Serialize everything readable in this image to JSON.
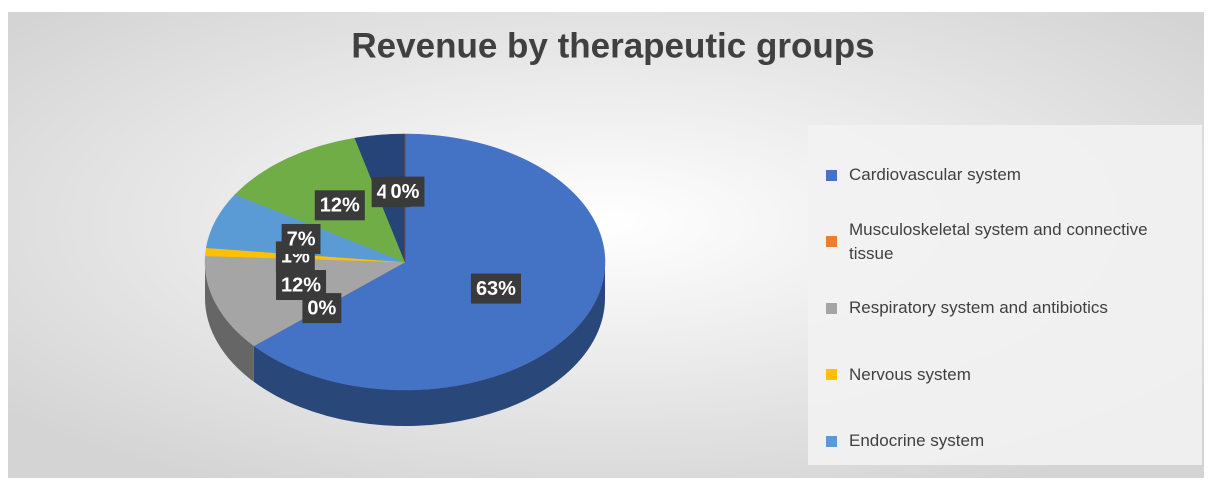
{
  "chart_data": {
    "type": "pie",
    "title": "Revenue by therapeutic groups",
    "categories": [
      "Cardiovascular system",
      "Musculoskeletal system and connective tissue",
      "Respiratory system and antibiotics",
      "Nervous system",
      "Endocrine system",
      null,
      null,
      null
    ],
    "values": [
      63,
      0,
      12,
      1,
      7,
      12,
      4,
      0
    ],
    "value_labels": [
      "63%",
      "0%",
      "12%",
      "1%",
      "7%",
      "12%",
      "4%",
      "0%"
    ],
    "colors": [
      "#4472c4",
      "#ed7d31",
      "#a5a5a5",
      "#ffc000",
      "#5b9bd5",
      "#70ad47",
      "#264478",
      "#9e480e"
    ],
    "legend": "right"
  }
}
